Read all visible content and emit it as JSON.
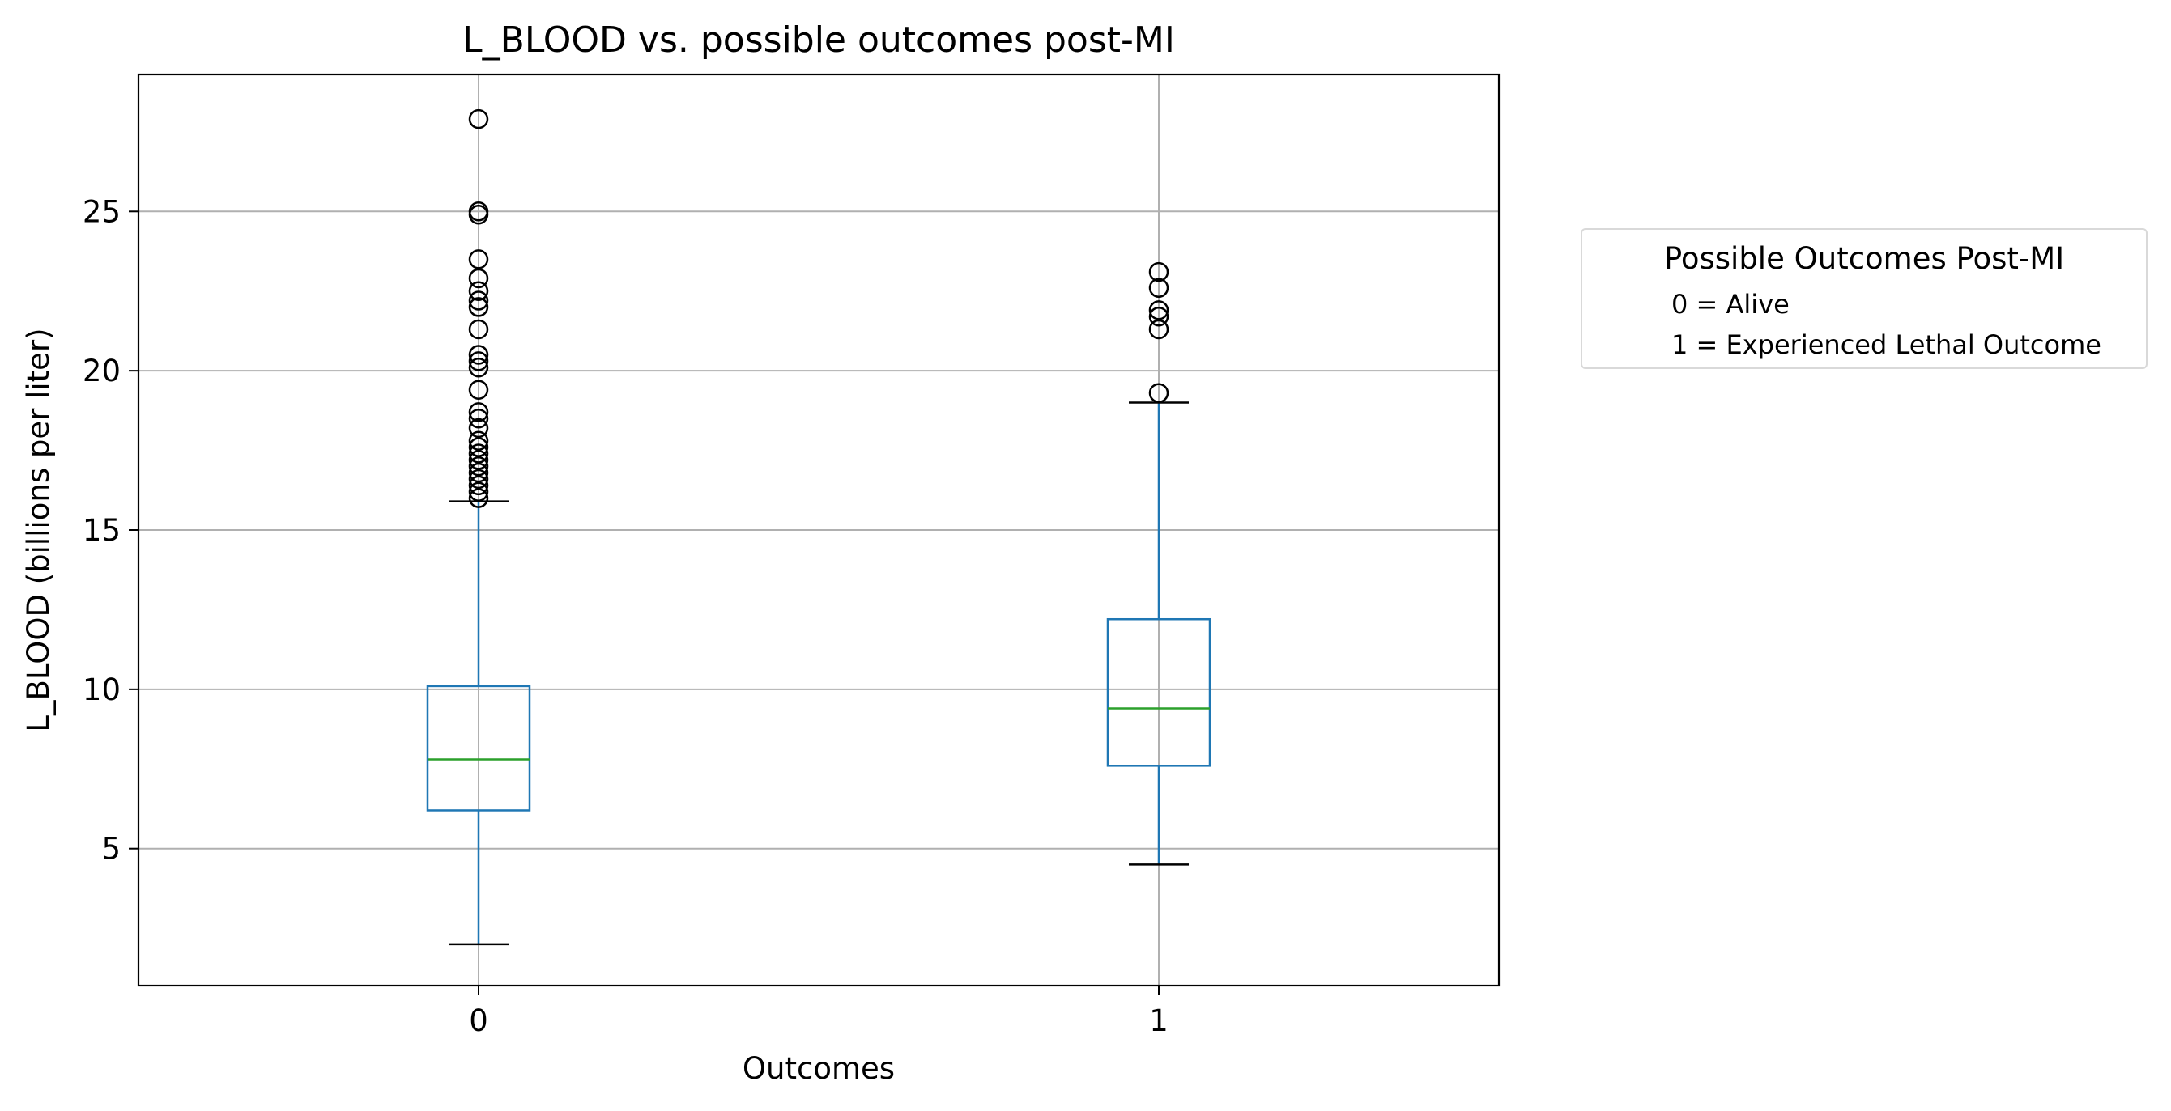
{
  "chart_data": {
    "type": "box",
    "title": "L_BLOOD vs. possible outcomes post-MI",
    "xlabel": "Outcomes",
    "ylabel": "L_BLOOD (billions per liter)",
    "categories": [
      "0",
      "1"
    ],
    "yticks": [
      5,
      10,
      15,
      20,
      25
    ],
    "ylim": [
      0.7,
      29.3
    ],
    "grid": true,
    "legend": {
      "placement": "outside-right",
      "title": "Possible Outcomes Post-MI",
      "entries": [
        "0 = Alive",
        "1 = Experienced Lethal Outcome"
      ]
    },
    "boxes": [
      {
        "category": "0",
        "whisker_low": 2.0,
        "q1": 6.2,
        "median": 7.8,
        "q3": 10.1,
        "whisker_high": 15.9,
        "outliers": [
          16.0,
          16.2,
          16.4,
          16.6,
          16.8,
          17.0,
          17.2,
          17.4,
          17.6,
          17.8,
          18.2,
          18.5,
          18.7,
          19.4,
          20.1,
          20.3,
          20.5,
          21.3,
          22.0,
          22.2,
          22.5,
          22.9,
          23.5,
          24.9,
          25.0,
          27.9
        ]
      },
      {
        "category": "1",
        "whisker_low": 4.5,
        "q1": 7.6,
        "median": 9.4,
        "q3": 12.2,
        "whisker_high": 19.0,
        "outliers": [
          19.3,
          21.3,
          21.7,
          21.9,
          22.6,
          23.1
        ]
      }
    ],
    "colors": {
      "box": "#1f77b4",
      "median": "#2ca02c",
      "whisker_cap": "#000000",
      "outlier": "#000000",
      "grid": "#b0b0b0"
    }
  }
}
